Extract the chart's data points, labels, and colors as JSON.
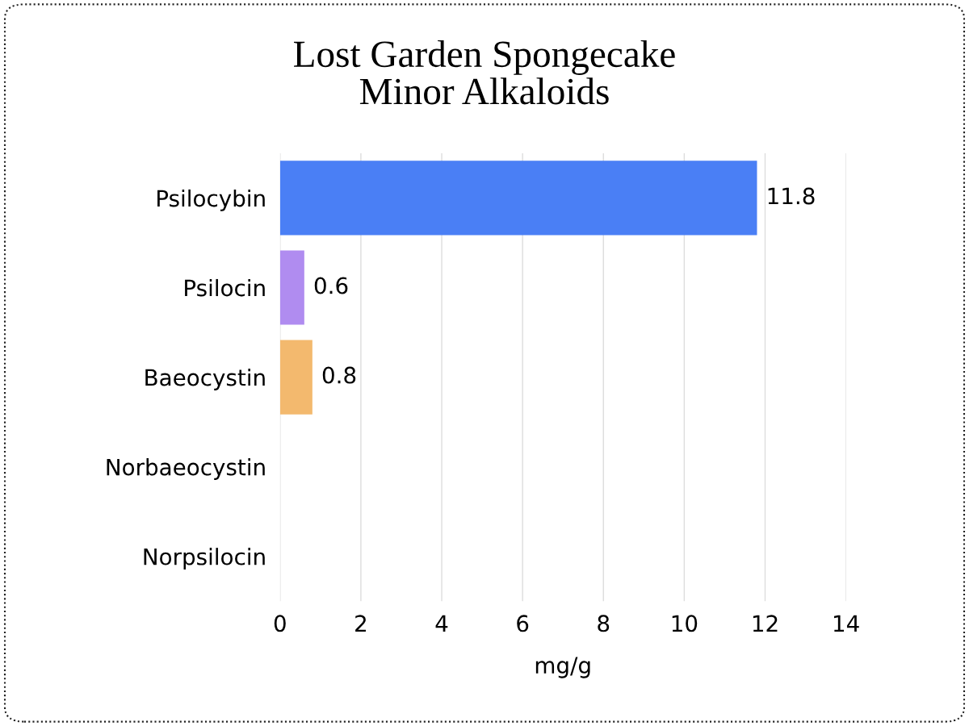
{
  "chart_data": {
    "type": "bar",
    "orientation": "horizontal",
    "title": "Lost Garden Spongecake\nMinor Alkaloids",
    "xlabel": "mg/g",
    "categories": [
      "Psilocybin",
      "Psilocin",
      "Baeocystin",
      "Norbaeocystin",
      "Norpsilocin"
    ],
    "values": [
      11.8,
      0.6,
      0.8,
      null,
      null
    ],
    "colors": [
      "#4a7ff5",
      "#b08cf0",
      "#f3b96e",
      "#cccccc",
      "#cccccc"
    ],
    "value_labels": [
      "11.8",
      "0.6",
      "0.8",
      null,
      null
    ],
    "xlim": [
      0,
      14
    ],
    "xticks": [
      0,
      2,
      4,
      6,
      8,
      10,
      12,
      14
    ],
    "grid": "x",
    "legend": false
  }
}
